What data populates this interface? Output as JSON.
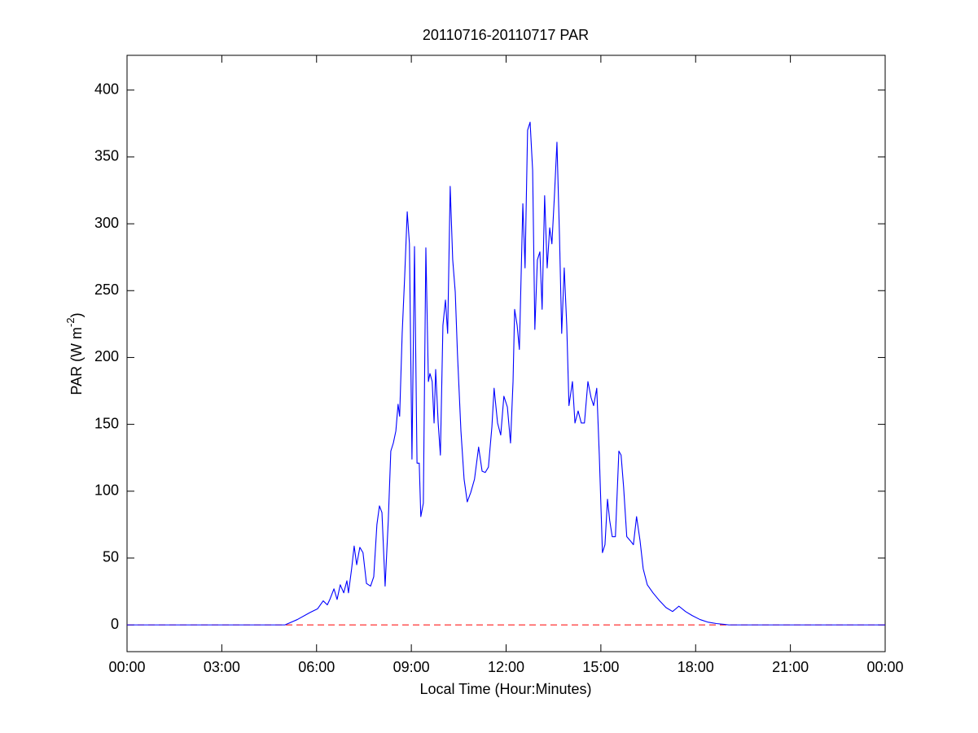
{
  "chart_data": {
    "type": "line",
    "title": "20110716-20110717 PAR",
    "xlabel": "Local Time (Hour:Minutes)",
    "ylabel": [
      "PAR (W m",
      "-2",
      ")"
    ],
    "x": [
      0,
      5.0,
      5.39,
      5.77,
      6.03,
      6.21,
      6.34,
      6.42,
      6.55,
      6.65,
      6.75,
      6.86,
      6.96,
      7.01,
      7.11,
      7.19,
      7.27,
      7.37,
      7.47,
      7.58,
      7.71,
      7.81,
      7.91,
      7.99,
      8.07,
      8.17,
      8.27,
      8.35,
      8.43,
      8.51,
      8.58,
      8.63,
      8.71,
      8.79,
      8.87,
      8.94,
      9.02,
      9.1,
      9.18,
      9.25,
      9.3,
      9.38,
      9.46,
      9.54,
      9.59,
      9.66,
      9.72,
      9.77,
      9.85,
      9.92,
      10.0,
      10.08,
      10.15,
      10.23,
      10.31,
      10.39,
      10.46,
      10.57,
      10.67,
      10.77,
      10.88,
      11.0,
      11.13,
      11.24,
      11.34,
      11.44,
      11.55,
      11.62,
      11.73,
      11.83,
      11.93,
      12.04,
      12.14,
      12.22,
      12.27,
      12.35,
      12.42,
      12.53,
      12.6,
      12.68,
      12.76,
      12.84,
      12.91,
      12.99,
      13.07,
      13.14,
      13.22,
      13.3,
      13.38,
      13.45,
      13.53,
      13.61,
      13.69,
      13.76,
      13.84,
      13.92,
      13.99,
      14.1,
      14.18,
      14.28,
      14.38,
      14.48,
      14.59,
      14.69,
      14.77,
      14.87,
      14.95,
      15.05,
      15.13,
      15.21,
      15.28,
      15.36,
      15.46,
      15.57,
      15.64,
      15.72,
      15.82,
      15.93,
      16.03,
      16.13,
      16.24,
      16.34,
      16.47,
      16.65,
      16.86,
      17.06,
      17.27,
      17.47,
      17.68,
      17.89,
      18.14,
      18.4,
      18.66,
      19.05,
      19.4,
      24
    ],
    "series": [
      {
        "color": "#0000ff",
        "values": [
          0,
          0,
          4,
          9,
          12,
          18,
          15,
          19,
          27,
          19,
          30,
          24,
          33,
          24,
          42,
          59,
          45,
          58,
          54,
          31,
          29,
          36,
          75,
          89,
          84,
          29,
          78,
          130,
          136,
          145,
          165,
          156,
          218,
          261,
          309,
          285,
          124,
          283,
          121,
          121,
          81,
          91,
          282,
          182,
          188,
          182,
          151,
          191,
          151,
          127,
          224,
          243,
          218,
          328,
          273,
          249,
          203,
          145,
          109,
          92,
          99,
          109,
          133,
          115,
          114,
          118,
          148,
          177,
          151,
          142,
          171,
          163,
          136,
          182,
          236,
          224,
          206,
          315,
          267,
          370,
          376,
          340,
          221,
          273,
          279,
          236,
          321,
          267,
          297,
          285,
          321,
          361,
          291,
          218,
          267,
          224,
          164,
          182,
          151,
          160,
          151,
          151,
          182,
          170,
          164,
          177,
          127,
          54,
          60,
          94,
          78,
          66,
          66,
          130,
          127,
          103,
          66,
          63,
          60,
          81,
          63,
          42,
          30,
          24,
          18,
          13,
          10,
          14,
          10,
          7,
          4,
          2,
          1,
          0,
          0,
          0
        ]
      }
    ],
    "hline": {
      "value": 0,
      "color": "#ff0000",
      "style": "dashed"
    },
    "xlim": [
      0,
      24
    ],
    "xticks": [
      {
        "value": 0,
        "label": "00:00"
      },
      {
        "value": 3,
        "label": "03:00"
      },
      {
        "value": 6,
        "label": "06:00"
      },
      {
        "value": 9,
        "label": "09:00"
      },
      {
        "value": 12,
        "label": "12:00"
      },
      {
        "value": 15,
        "label": "15:00"
      },
      {
        "value": 18,
        "label": "18:00"
      },
      {
        "value": 21,
        "label": "21:00"
      },
      {
        "value": 24,
        "label": "00:00"
      }
    ],
    "ylim": [
      -20,
      426
    ],
    "yticks": [
      0,
      50,
      100,
      150,
      200,
      250,
      300,
      350,
      400
    ],
    "grid": false
  }
}
